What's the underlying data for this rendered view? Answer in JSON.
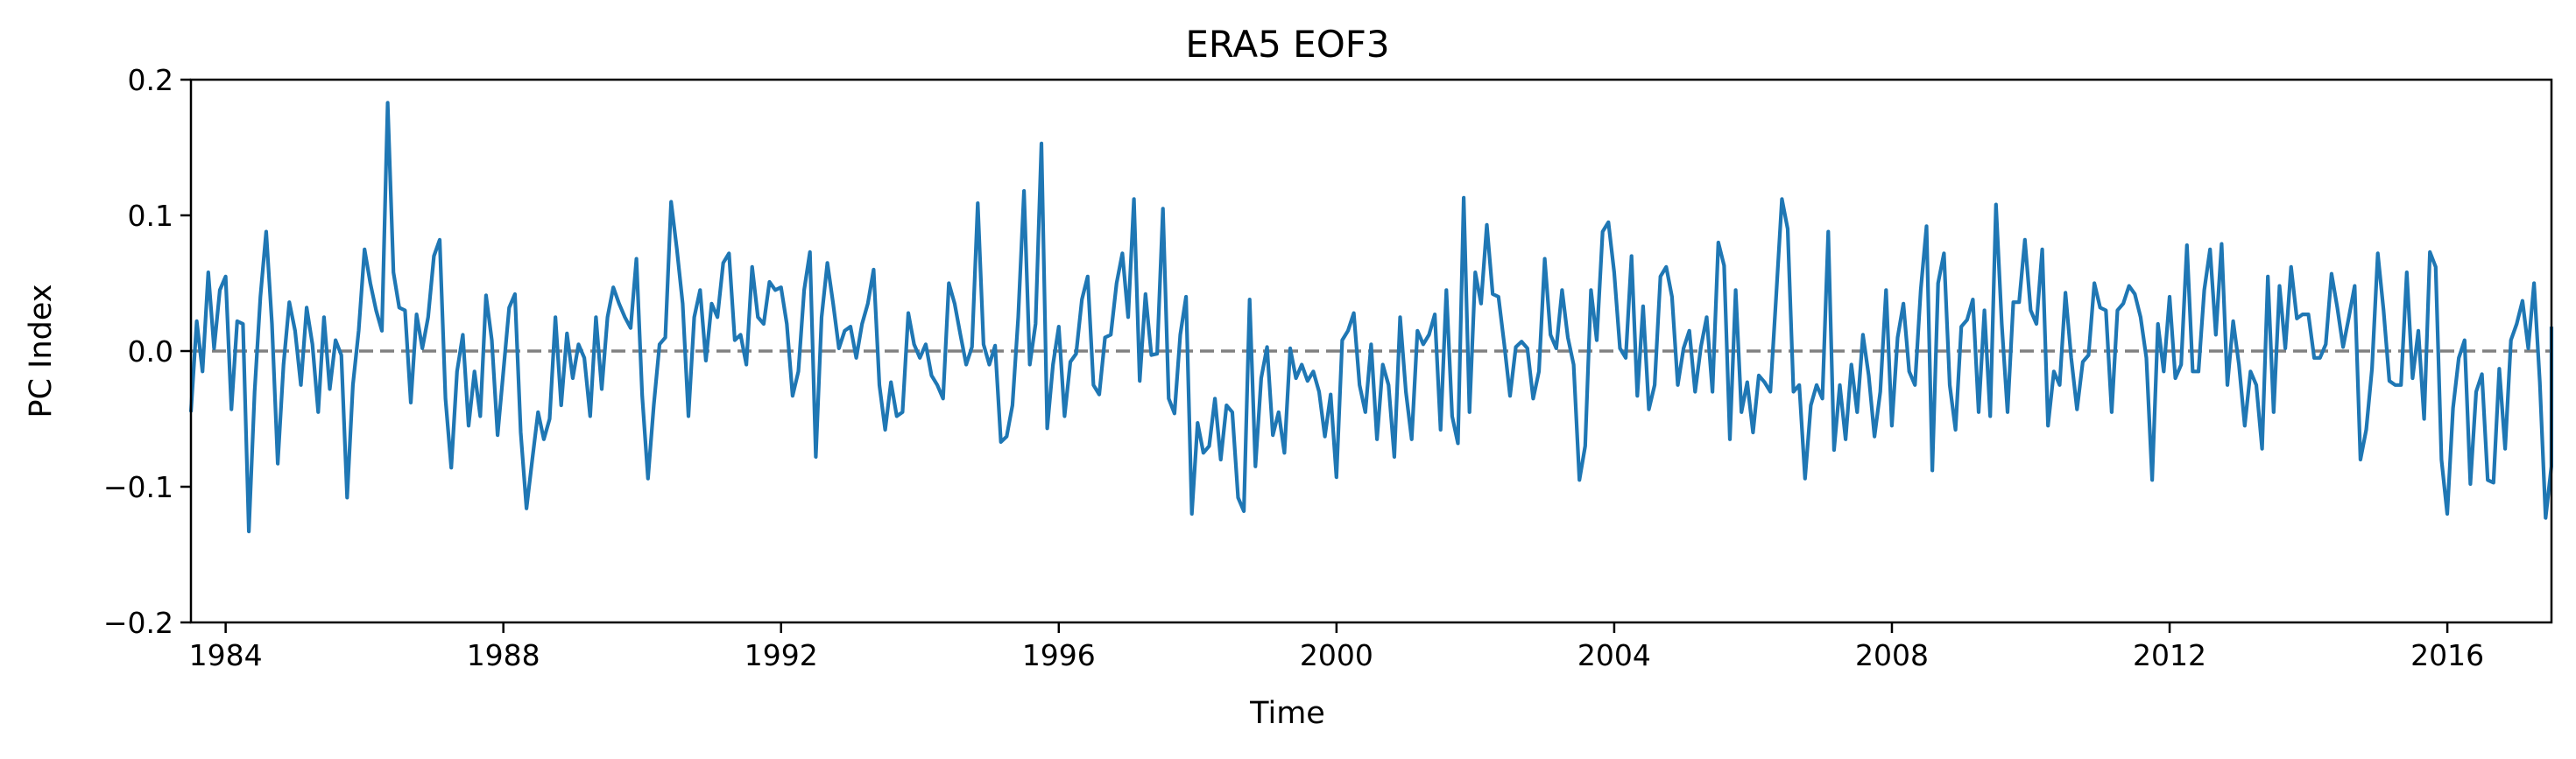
{
  "chart_data": {
    "type": "line",
    "title": "ERA5  EOF3",
    "xlabel": "Time",
    "ylabel": "PC Index",
    "xlim": [
      1983.5,
      2017.5
    ],
    "ylim": [
      -0.2,
      0.2
    ],
    "xticks": [
      1984,
      1988,
      1992,
      1996,
      2000,
      2004,
      2008,
      2012,
      2016
    ],
    "xtick_labels": [
      "1984",
      "1988",
      "1992",
      "1996",
      "2000",
      "2004",
      "2008",
      "2012",
      "2016"
    ],
    "yticks": [
      -0.2,
      -0.1,
      0.0,
      0.1,
      0.2
    ],
    "ytick_labels": [
      "−0.2",
      "−0.1",
      "0.0",
      "0.1",
      "0.2"
    ],
    "grid": false,
    "reference_line": {
      "y": 0.0,
      "style": "dashed",
      "color": "#808080"
    },
    "series": [
      {
        "color": "#1f77b4",
        "x_start": 1983.5,
        "x_step": 0.08333,
        "values": [
          -0.045,
          0.022,
          -0.015,
          0.058,
          0.002,
          0.045,
          0.055,
          -0.043,
          0.022,
          0.02,
          -0.133,
          -0.03,
          0.04,
          0.088,
          0.02,
          -0.083,
          -0.01,
          0.036,
          0.015,
          -0.025,
          0.032,
          0.005,
          -0.045,
          0.025,
          -0.028,
          0.008,
          -0.003,
          -0.108,
          -0.025,
          0.015,
          0.075,
          0.05,
          0.03,
          0.015,
          0.183,
          0.058,
          0.032,
          0.03,
          -0.038,
          0.027,
          0.002,
          0.025,
          0.07,
          0.082,
          -0.035,
          -0.086,
          -0.015,
          0.012,
          -0.055,
          -0.015,
          -0.048,
          0.041,
          0.008,
          -0.062,
          -0.015,
          0.032,
          0.042,
          -0.06,
          -0.116,
          -0.08,
          -0.045,
          -0.065,
          -0.05,
          0.025,
          -0.04,
          0.013,
          -0.02,
          0.005,
          -0.005,
          -0.048,
          0.025,
          -0.028,
          0.025,
          0.047,
          0.035,
          0.025,
          0.017,
          0.068,
          -0.033,
          -0.094,
          -0.04,
          0.005,
          0.01,
          0.11,
          0.075,
          0.035,
          -0.048,
          0.025,
          0.045,
          -0.007,
          0.035,
          0.025,
          0.065,
          0.072,
          0.008,
          0.012,
          -0.01,
          0.062,
          0.025,
          0.02,
          0.051,
          0.045,
          0.047,
          0.02,
          -0.033,
          -0.015,
          0.045,
          0.073,
          -0.078,
          0.025,
          0.065,
          0.035,
          0.002,
          0.015,
          0.018,
          -0.005,
          0.02,
          0.035,
          0.06,
          -0.025,
          -0.058,
          -0.023,
          -0.048,
          -0.045,
          0.028,
          0.005,
          -0.005,
          0.005,
          -0.018,
          -0.025,
          -0.035,
          0.05,
          0.035,
          0.012,
          -0.01,
          0.003,
          0.109,
          0.005,
          -0.01,
          0.004,
          -0.067,
          -0.063,
          -0.04,
          0.025,
          0.118,
          -0.01,
          0.02,
          0.153,
          -0.057,
          -0.01,
          0.018,
          -0.048,
          -0.008,
          -0.002,
          0.038,
          0.055,
          -0.025,
          -0.032,
          0.01,
          0.012,
          0.05,
          0.072,
          0.025,
          0.112,
          -0.022,
          0.042,
          -0.003,
          -0.002,
          0.105,
          -0.035,
          -0.046,
          0.012,
          0.04,
          -0.12,
          -0.053,
          -0.075,
          -0.07,
          -0.035,
          -0.08,
          -0.04,
          -0.045,
          -0.108,
          -0.118,
          0.038,
          -0.085,
          -0.02,
          0.003,
          -0.062,
          -0.045,
          -0.075,
          0.002,
          -0.02,
          -0.01,
          -0.022,
          -0.015,
          -0.03,
          -0.063,
          -0.032,
          -0.093,
          0.008,
          0.015,
          0.028,
          -0.025,
          -0.045,
          0.005,
          -0.065,
          -0.01,
          -0.025,
          -0.078,
          0.025,
          -0.03,
          -0.065,
          0.015,
          0.005,
          0.012,
          0.027,
          -0.058,
          0.045,
          -0.048,
          -0.068,
          0.113,
          -0.045,
          0.058,
          0.035,
          0.093,
          0.042,
          0.04,
          0.005,
          -0.033,
          0.003,
          0.007,
          0.002,
          -0.035,
          -0.015,
          0.068,
          0.012,
          0.002,
          0.045,
          0.01,
          -0.01,
          -0.095,
          -0.07,
          0.045,
          0.008,
          0.088,
          0.095,
          0.058,
          0.002,
          -0.005,
          0.07,
          -0.033,
          0.033,
          -0.043,
          -0.025,
          0.055,
          0.062,
          0.04,
          -0.025,
          0.002,
          0.015,
          -0.03,
          0.003,
          0.025,
          -0.03,
          0.08,
          0.063,
          -0.065,
          0.045,
          -0.045,
          -0.023,
          -0.06,
          -0.018,
          -0.023,
          -0.03,
          0.04,
          0.112,
          0.09,
          -0.03,
          -0.025,
          -0.094,
          -0.04,
          -0.025,
          -0.035,
          0.088,
          -0.073,
          -0.025,
          -0.065,
          -0.01,
          -0.045,
          0.012,
          -0.018,
          -0.063,
          -0.03,
          0.045,
          -0.055,
          0.01,
          0.035,
          -0.015,
          -0.025,
          0.045,
          0.092,
          -0.088,
          0.05,
          0.072,
          -0.025,
          -0.058,
          0.018,
          0.023,
          0.038,
          -0.045,
          0.03,
          -0.048,
          0.108,
          0.02,
          -0.045,
          0.036,
          0.036,
          0.082,
          0.03,
          0.02,
          0.075,
          -0.055,
          -0.015,
          -0.025,
          0.043,
          -0.005,
          -0.043,
          -0.008,
          -0.003,
          0.05,
          0.032,
          0.03,
          -0.045,
          0.03,
          0.035,
          0.048,
          0.042,
          0.025,
          -0.005,
          -0.095,
          0.02,
          -0.015,
          0.04,
          -0.02,
          -0.01,
          0.078,
          -0.015,
          -0.015,
          0.045,
          0.075,
          0.012,
          0.079,
          -0.025,
          0.022,
          -0.01,
          -0.055,
          -0.015,
          -0.025,
          -0.072,
          0.055,
          -0.045,
          0.048,
          0.002,
          0.062,
          0.024,
          0.027,
          0.027,
          -0.005,
          -0.005,
          0.005,
          0.057,
          0.032,
          0.003,
          0.025,
          0.048,
          -0.08,
          -0.058,
          -0.013,
          0.072,
          0.03,
          -0.022,
          -0.025,
          -0.025,
          0.058,
          -0.02,
          0.015,
          -0.05,
          0.073,
          0.062,
          -0.08,
          -0.12,
          -0.042,
          -0.005,
          0.008,
          -0.098,
          -0.03,
          -0.017,
          -0.095,
          -0.097,
          -0.013,
          -0.072,
          0.008,
          0.02,
          0.037,
          0.002,
          0.05,
          -0.023,
          -0.123,
          -0.085,
          -0.03,
          0.018
        ]
      }
    ]
  }
}
